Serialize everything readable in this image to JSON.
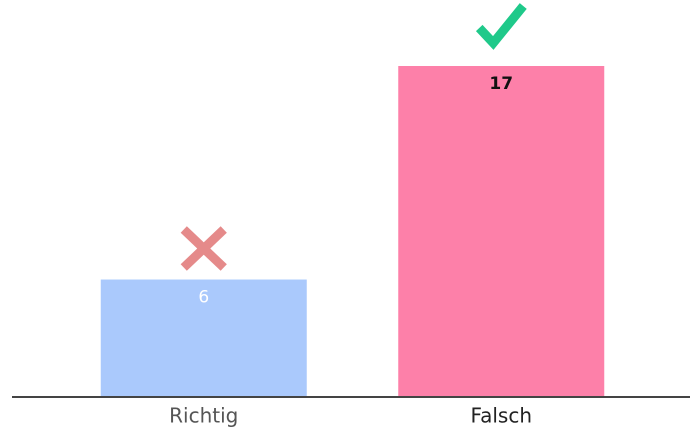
{
  "chart_data": {
    "type": "bar",
    "categories": [
      "Richtig",
      "Falsch"
    ],
    "values": [
      6,
      17
    ],
    "colors": [
      "#aac9fc",
      "#fd80a9"
    ],
    "icons": [
      "cross",
      "check"
    ]
  }
}
